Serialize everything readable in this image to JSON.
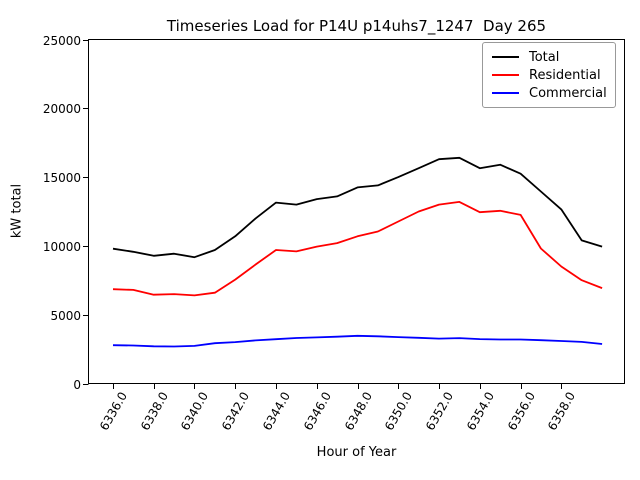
{
  "chart_data": {
    "type": "line",
    "title": "Timeseries Load for P14U p14uhs7_1247  Day 265",
    "xlabel": "Hour of Year",
    "ylabel": "kW total",
    "grid": false,
    "legend_position": "upper right",
    "xlim": [
      6334.8,
      6361.1
    ],
    "ylim": [
      0,
      25000
    ],
    "xticks": [
      6336,
      6338,
      6340,
      6342,
      6344,
      6346,
      6348,
      6350,
      6352,
      6354,
      6356,
      6358
    ],
    "xtick_labels": [
      "6336.0",
      "6338.0",
      "6340.0",
      "6342.0",
      "6344.0",
      "6346.0",
      "6348.0",
      "6350.0",
      "6352.0",
      "6354.0",
      "6356.0",
      "6358.0"
    ],
    "yticks": [
      0,
      5000,
      10000,
      15000,
      20000,
      25000
    ],
    "ytick_labels": [
      "0",
      "5000",
      "10000",
      "15000",
      "20000",
      "25000"
    ],
    "x": [
      6336,
      6337,
      6338,
      6339,
      6340,
      6341,
      6342,
      6343,
      6344,
      6345,
      6346,
      6347,
      6348,
      6349,
      6350,
      6351,
      6352,
      6353,
      6354,
      6355,
      6356,
      6357,
      6358,
      6359,
      6360
    ],
    "series": [
      {
        "name": "Total",
        "color": "#000000",
        "values": [
          9800,
          9570,
          9280,
          9430,
          9180,
          9700,
          10700,
          12000,
          13150,
          13000,
          13400,
          13600,
          14250,
          14400,
          15000,
          15650,
          16300,
          16400,
          15650,
          15900,
          15250,
          13950,
          12650,
          10400,
          9950
        ]
      },
      {
        "name": "Residential",
        "color": "#ff0000",
        "values": [
          6850,
          6800,
          6450,
          6500,
          6400,
          6600,
          7550,
          8650,
          9700,
          9600,
          9950,
          10200,
          10700,
          11050,
          11770,
          12500,
          13000,
          13200,
          12450,
          12550,
          12250,
          9810,
          8500,
          7510,
          6930
        ]
      },
      {
        "name": "Commercial",
        "color": "#0000ff",
        "values": [
          2780,
          2760,
          2700,
          2690,
          2730,
          2930,
          3010,
          3130,
          3220,
          3310,
          3350,
          3400,
          3470,
          3430,
          3370,
          3320,
          3260,
          3300,
          3230,
          3200,
          3200,
          3150,
          3090,
          3020,
          2870
        ]
      }
    ]
  }
}
